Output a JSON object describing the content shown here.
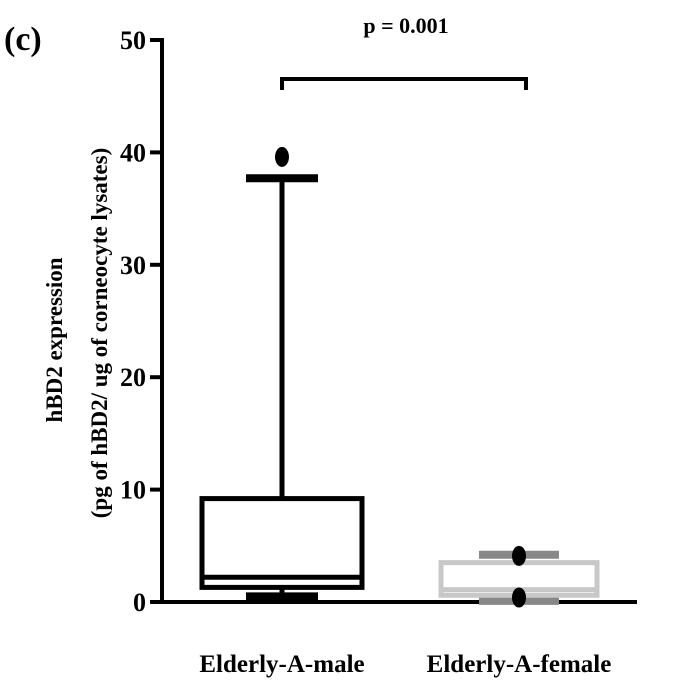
{
  "panel_label": "(c)",
  "annotation": "p = 0.001",
  "ylabel_line1": "hBD2 expression",
  "ylabel_line2": "(pg of hBD2/ ug of corneocyte lysates)",
  "colors": {
    "male": "#000000",
    "female_whisker": "#888888",
    "female_box": "#c8c8c8",
    "axis": "#000000"
  },
  "chart_data": {
    "type": "box",
    "title": "",
    "ylabel": "hBD2 expression (pg of hBD2/ ug of corneocyte lysates)",
    "ylim": [
      0,
      50
    ],
    "yticks": [
      0,
      10,
      20,
      30,
      40,
      50
    ],
    "categories": [
      "Elderly-A-male",
      "Elderly-A-female"
    ],
    "boxes": [
      {
        "name": "Elderly-A-male",
        "min": 0.5,
        "q1": 1.3,
        "median": 2.2,
        "q3": 9.2,
        "max": 37.7,
        "outliers": [
          39.6
        ]
      },
      {
        "name": "Elderly-A-female",
        "min": 0.1,
        "q1": 0.6,
        "median": 1.1,
        "q3": 3.5,
        "max": 4.2,
        "outliers": [
          4.1,
          0.4
        ]
      }
    ],
    "significance": {
      "from": "Elderly-A-male",
      "to": "Elderly-A-female",
      "label": "p = 0.001"
    }
  }
}
